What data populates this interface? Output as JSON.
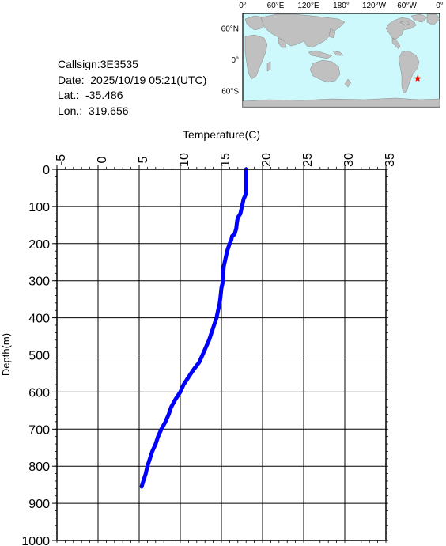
{
  "station": {
    "callsign": "Callsign:3E3535",
    "date": "Date:  2025/10/19 05:21(UTC)",
    "lat": "Lat.:  -35.486",
    "lon": "Lon.:  319.656"
  },
  "map": {
    "top_labels": [
      "0°",
      "60°E",
      "120°E",
      "180°",
      "120°W",
      "60°W",
      "0°"
    ],
    "side_labels": [
      "60°N",
      "0°",
      "60°S"
    ],
    "marker_lat": -35.486,
    "marker_lon": 319.656,
    "ocean_color": "#cdf9fc",
    "land_color": "#c0c0c0",
    "marker_color": "#ff0000",
    "marker_icon": "star-icon"
  },
  "chart_data": {
    "type": "line",
    "title": "",
    "xlabel": "Temperature(C)",
    "ylabel": "Depth(m)",
    "xlim": [
      -5,
      35
    ],
    "ylim": [
      0,
      1000
    ],
    "x_ticks": [
      "-5",
      "0",
      "5",
      "10",
      "15",
      "20",
      "25",
      "30",
      "35"
    ],
    "y_ticks": [
      "0",
      "100",
      "200",
      "300",
      "400",
      "500",
      "600",
      "700",
      "800",
      "900",
      "1000"
    ],
    "grid": true,
    "y_inverted": true,
    "series_color": "#0000ff",
    "series": [
      {
        "name": "",
        "depth": [
          0,
          20,
          40,
          60,
          70,
          80,
          100,
          120,
          130,
          140,
          160,
          175,
          180,
          190,
          200,
          220,
          240,
          260,
          280,
          300,
          320,
          340,
          360,
          380,
          400,
          420,
          440,
          460,
          480,
          500,
          520,
          540,
          560,
          580,
          600,
          620,
          640,
          660,
          680,
          700,
          720,
          740,
          760,
          780,
          800,
          820,
          840,
          855
        ],
        "temperature": [
          18.0,
          18.0,
          18.0,
          18.0,
          17.9,
          17.7,
          17.5,
          17.3,
          17.0,
          16.9,
          16.8,
          16.6,
          16.3,
          16.2,
          16.0,
          15.7,
          15.5,
          15.3,
          15.2,
          15.2,
          15.0,
          14.9,
          14.8,
          14.6,
          14.4,
          14.1,
          13.8,
          13.5,
          13.1,
          12.7,
          12.3,
          11.6,
          11.0,
          10.4,
          10.0,
          9.4,
          8.9,
          8.6,
          8.2,
          7.7,
          7.3,
          7.0,
          6.6,
          6.3,
          6.0,
          5.8,
          5.5,
          5.3
        ]
      }
    ]
  }
}
